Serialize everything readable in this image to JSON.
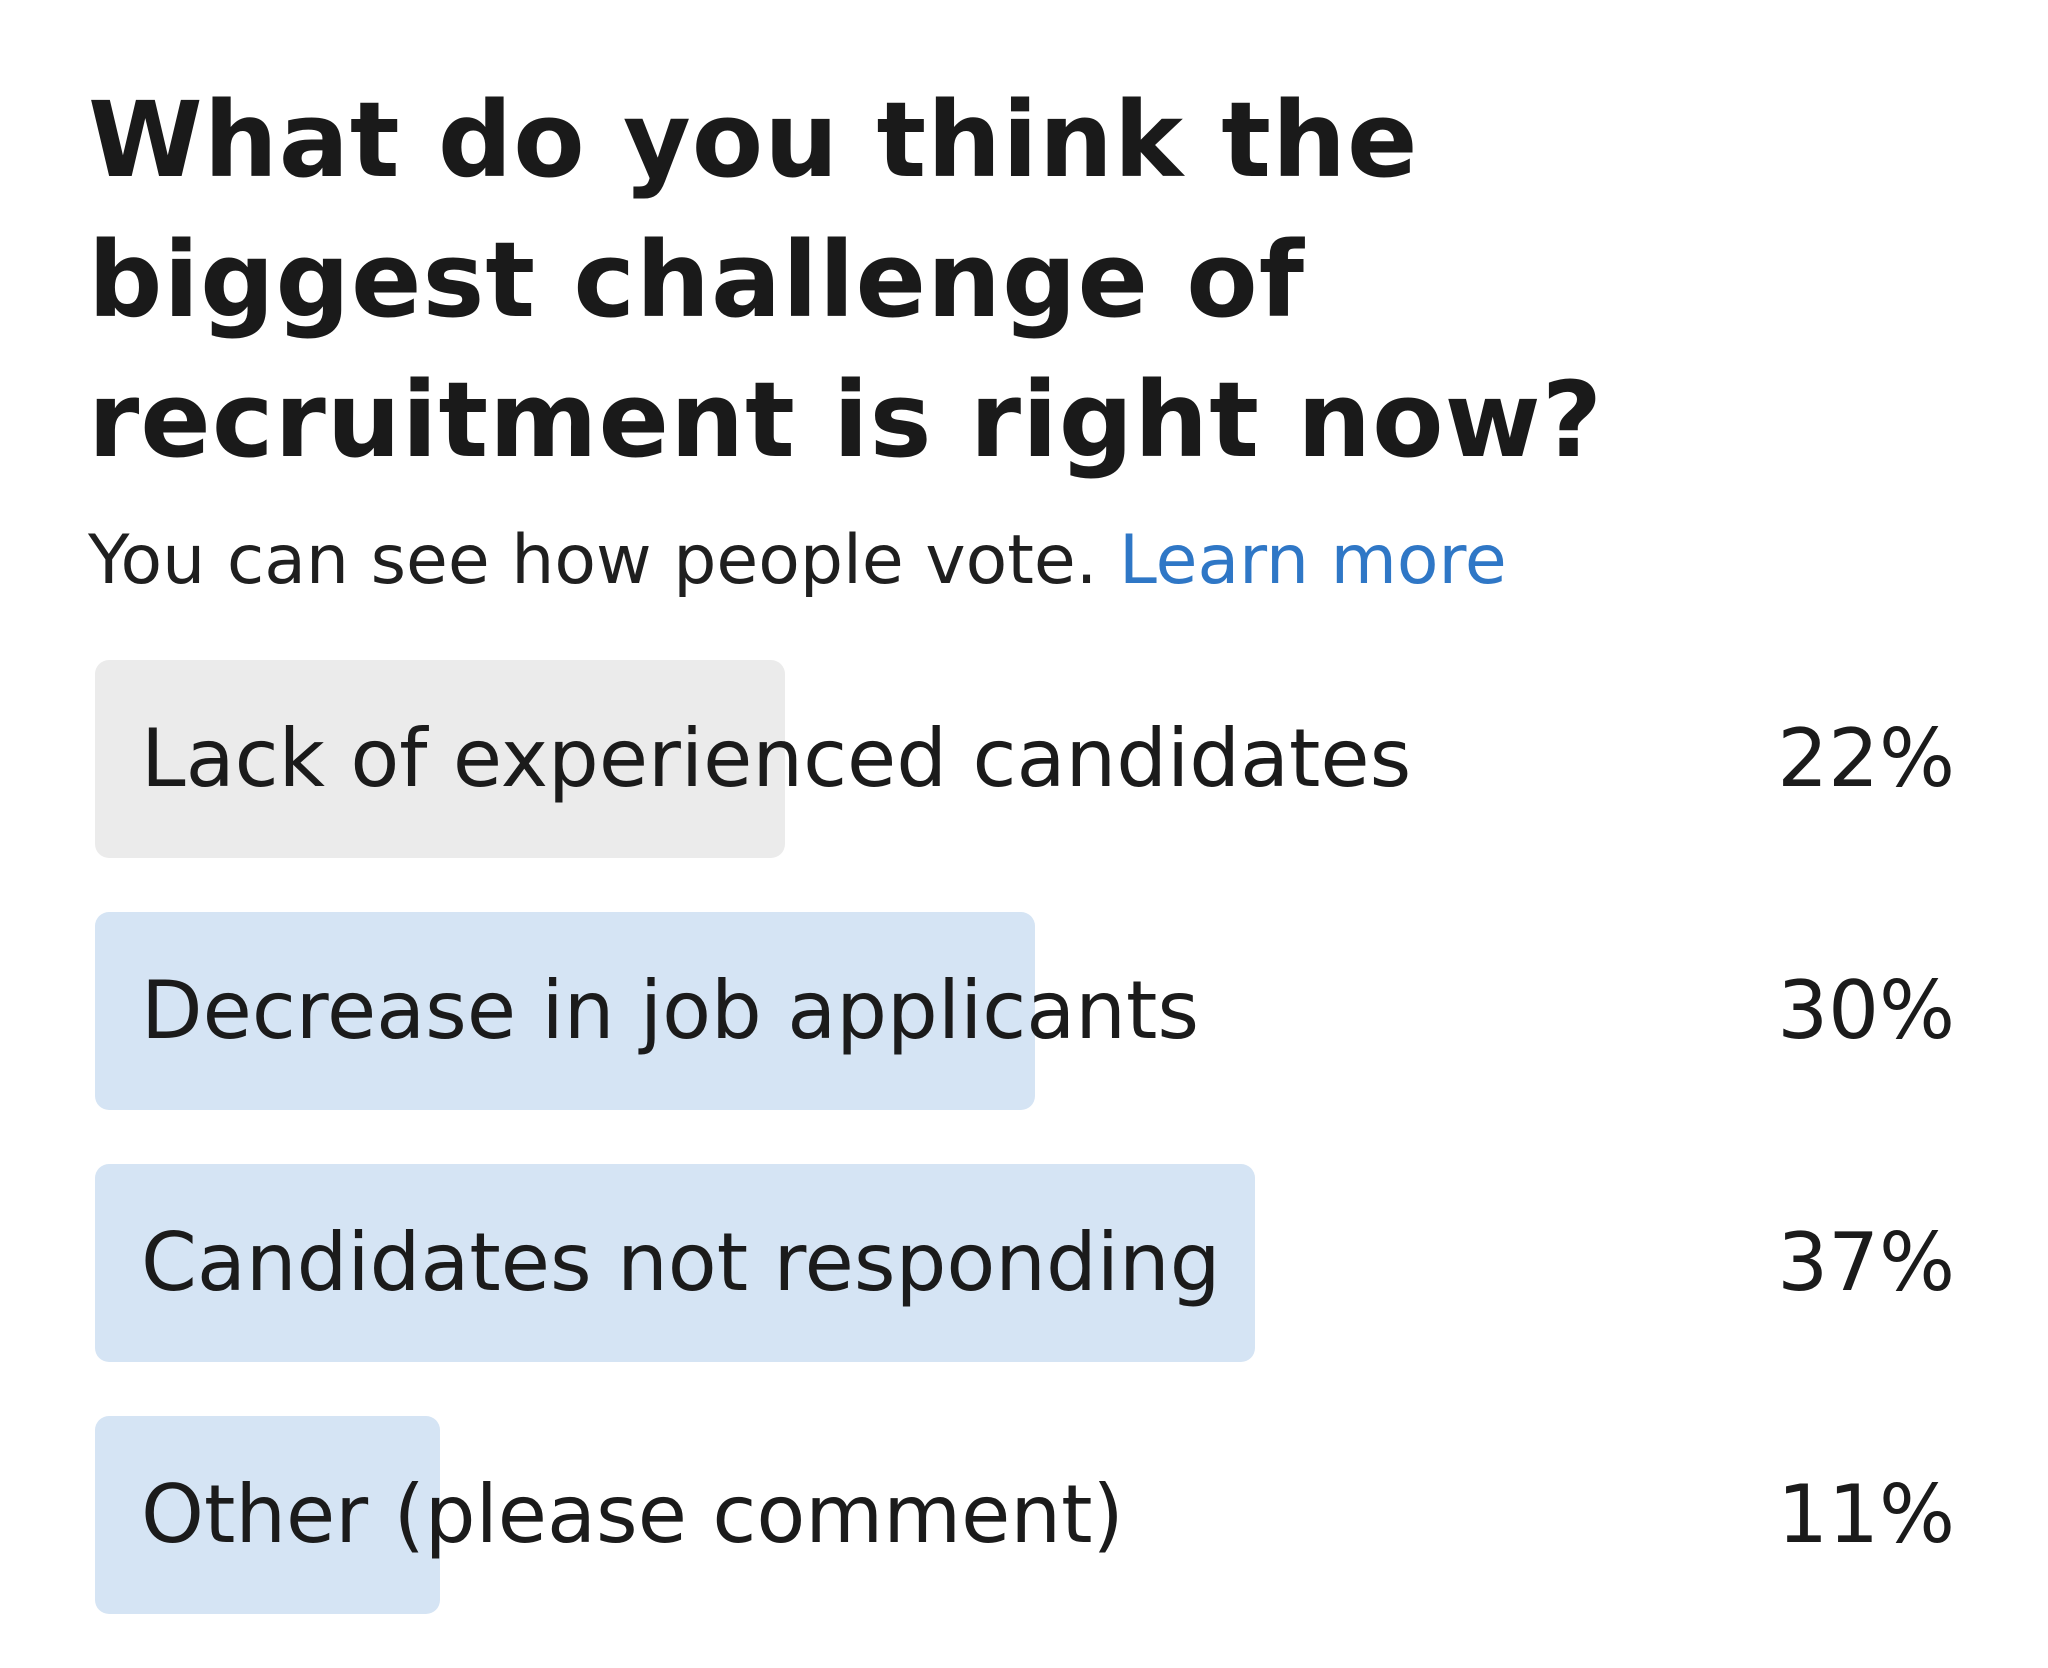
{
  "poll": {
    "question": "What do you think the biggest challenge of recruitment is right now?",
    "visibility_text": "You can see how people vote.",
    "learn_more_label": "Learn more",
    "colors": {
      "link": "#2f77c6",
      "bar_fill": "#d5e4f4",
      "bar_fill_selected": "#ebebeb",
      "text": "#1b1b1b"
    },
    "options": [
      {
        "label": "Lack of experienced candidates",
        "percent_label": "22%",
        "percent": 22,
        "selected": true
      },
      {
        "label": "Decrease in job applicants",
        "percent_label": "30%",
        "percent": 30,
        "selected": false
      },
      {
        "label": "Candidates not responding",
        "percent_label": "37%",
        "percent": 37,
        "selected": false
      },
      {
        "label": "Other (please comment)",
        "percent_label": "11%",
        "percent": 11,
        "selected": false
      }
    ]
  }
}
